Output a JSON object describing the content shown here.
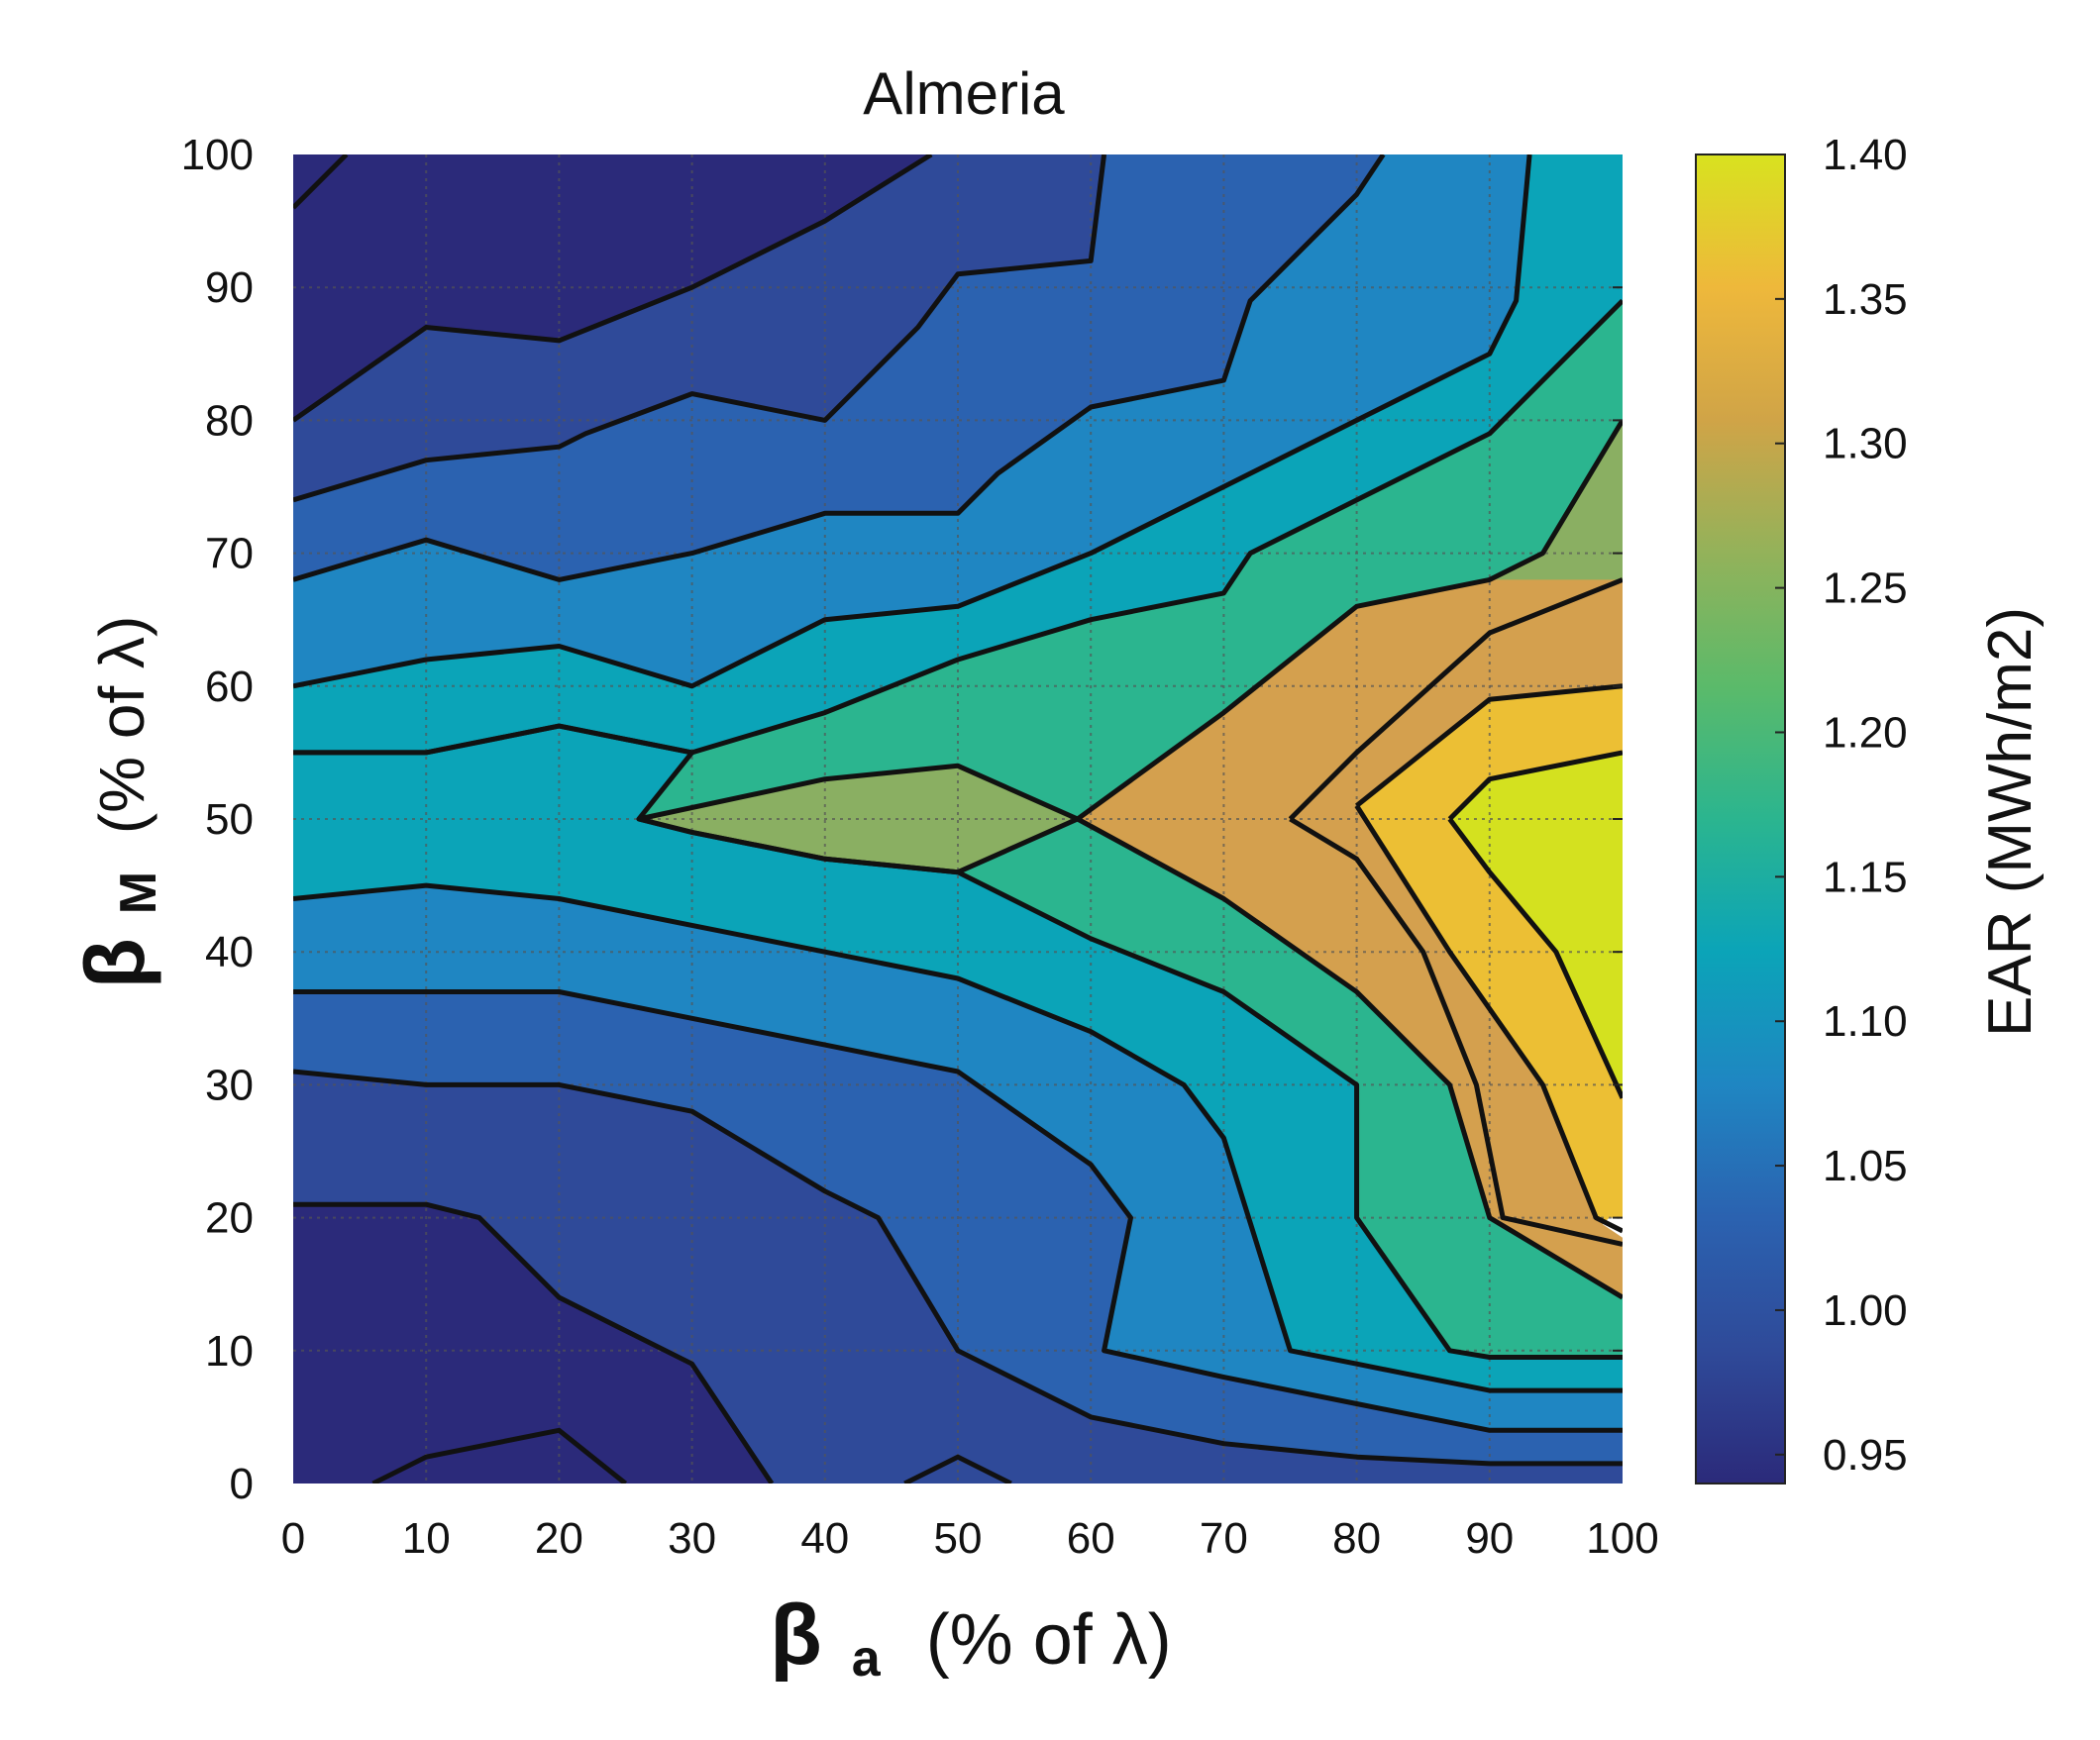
{
  "chart_data": {
    "type": "contour",
    "title": "Almeria",
    "xlabel": {
      "symbol": "β",
      "sub": "a",
      "text": "(% of λ)"
    },
    "ylabel": {
      "symbol": "β",
      "sub": "M",
      "text": "(% of λ)"
    },
    "xlim": [
      0,
      100
    ],
    "ylim": [
      0,
      100
    ],
    "xticks": [
      "0",
      "10",
      "20",
      "30",
      "40",
      "50",
      "60",
      "70",
      "80",
      "90",
      "100"
    ],
    "yticks": [
      "0",
      "10",
      "20",
      "30",
      "40",
      "50",
      "60",
      "70",
      "80",
      "90",
      "100"
    ],
    "grid": true,
    "colorbar": {
      "label": "EAR (MWh/m2)",
      "range": [
        0.94,
        1.4
      ],
      "ticks": [
        "0.95",
        "1.00",
        "1.05",
        "1.10",
        "1.15",
        "1.20",
        "1.25",
        "1.30",
        "1.35",
        "1.40"
      ],
      "colormap": [
        "#2b2a7a",
        "#2f4a99",
        "#2b62b0",
        "#1f86c2",
        "#0ba4b8",
        "#2bb58f",
        "#5bba6a",
        "#93b25a",
        "#d0a447",
        "#eeb83b",
        "#d8e21f"
      ]
    },
    "level_colors": {
      "0.95": "#2b2a7a",
      "1.00": "#2f4a99",
      "1.05": "#2b62b0",
      "1.10": "#1f86c2",
      "1.15": "#0ba4b8",
      "1.20": "#2bb58f",
      "1.25": "#8aaf62",
      "1.30": "#d4a04e",
      "1.35": "#ecbf34",
      "1.40": "#d4e11f"
    },
    "contours": [
      {
        "level": 0.95,
        "points": [
          [
            0,
            96
          ],
          [
            4,
            100
          ]
        ]
      },
      {
        "level": 0.95,
        "points": [
          [
            6,
            0
          ],
          [
            10,
            2
          ],
          [
            20,
            4
          ],
          [
            25,
            0
          ]
        ]
      },
      {
        "level": 0.95,
        "points": [
          [
            46,
            0
          ],
          [
            50,
            2
          ],
          [
            54,
            0
          ]
        ]
      },
      {
        "level": 1.0,
        "points": [
          [
            0,
            80
          ],
          [
            10,
            87
          ],
          [
            20,
            86
          ],
          [
            30,
            90
          ],
          [
            40,
            95
          ],
          [
            48,
            100
          ]
        ]
      },
      {
        "level": 1.0,
        "points": [
          [
            0,
            21
          ],
          [
            10,
            21
          ],
          [
            14,
            20
          ],
          [
            20,
            14
          ],
          [
            30,
            9
          ],
          [
            36,
            0
          ]
        ]
      },
      {
        "level": 1.05,
        "points": [
          [
            0,
            74
          ],
          [
            10,
            77
          ],
          [
            20,
            78
          ],
          [
            22,
            79
          ],
          [
            30,
            82
          ],
          [
            40,
            80
          ],
          [
            47,
            87
          ],
          [
            50,
            91
          ],
          [
            60,
            92
          ],
          [
            61,
            100
          ]
        ]
      },
      {
        "level": 1.05,
        "points": [
          [
            0,
            31
          ],
          [
            10,
            30
          ],
          [
            20,
            30
          ],
          [
            30,
            28
          ],
          [
            40,
            22
          ],
          [
            44,
            20
          ],
          [
            50,
            10
          ],
          [
            60,
            5
          ],
          [
            70,
            3
          ],
          [
            80,
            2
          ],
          [
            90,
            1.5
          ],
          [
            100,
            1.5
          ]
        ]
      },
      {
        "level": 1.1,
        "points": [
          [
            0,
            68
          ],
          [
            10,
            71
          ],
          [
            20,
            68
          ],
          [
            30,
            70
          ],
          [
            40,
            73
          ],
          [
            50,
            73
          ],
          [
            53,
            76
          ],
          [
            60,
            81
          ],
          [
            70,
            83
          ],
          [
            72,
            89
          ],
          [
            80,
            97
          ],
          [
            82,
            100
          ]
        ]
      },
      {
        "level": 1.1,
        "points": [
          [
            0,
            37
          ],
          [
            10,
            37
          ],
          [
            20,
            37
          ],
          [
            30,
            35
          ],
          [
            40,
            33
          ],
          [
            50,
            31
          ],
          [
            60,
            24
          ],
          [
            63,
            20
          ],
          [
            61,
            10
          ],
          [
            70,
            8
          ],
          [
            80,
            6
          ],
          [
            90,
            4
          ],
          [
            100,
            4
          ]
        ]
      },
      {
        "level": 1.15,
        "points": [
          [
            0,
            60
          ],
          [
            10,
            62
          ],
          [
            20,
            63
          ],
          [
            30,
            60
          ],
          [
            40,
            65
          ],
          [
            50,
            66
          ],
          [
            60,
            70
          ],
          [
            70,
            75
          ],
          [
            80,
            80
          ],
          [
            90,
            85
          ],
          [
            92,
            89
          ],
          [
            93,
            100
          ]
        ]
      },
      {
        "level": 1.15,
        "points": [
          [
            0,
            44
          ],
          [
            10,
            45
          ],
          [
            20,
            44
          ],
          [
            30,
            42
          ],
          [
            40,
            40
          ],
          [
            50,
            38
          ],
          [
            60,
            34
          ],
          [
            67,
            30
          ],
          [
            70,
            26
          ],
          [
            75,
            10
          ],
          [
            80,
            9
          ],
          [
            90,
            7
          ],
          [
            100,
            7
          ]
        ]
      },
      {
        "level": 1.2,
        "points": [
          [
            0,
            55
          ],
          [
            10,
            55
          ],
          [
            20,
            57
          ],
          [
            30,
            55
          ],
          [
            40,
            58
          ],
          [
            50,
            62
          ],
          [
            60,
            65
          ],
          [
            70,
            67
          ],
          [
            72,
            70
          ],
          [
            80,
            74
          ],
          [
            90,
            79
          ],
          [
            100,
            89
          ]
        ]
      },
      {
        "level": 1.2,
        "points": [
          [
            0,
            55
          ],
          [
            10,
            55
          ],
          [
            20,
            57
          ],
          [
            30,
            55
          ],
          [
            26,
            50
          ],
          [
            30,
            49
          ],
          [
            40,
            47
          ],
          [
            50,
            46
          ],
          [
            60,
            41
          ],
          [
            70,
            37
          ],
          [
            80,
            30
          ],
          [
            80,
            20
          ],
          [
            87,
            10
          ],
          [
            90,
            9.5
          ],
          [
            100,
            9.5
          ]
        ]
      },
      {
        "level": 1.25,
        "points": [
          [
            26,
            50
          ],
          [
            40,
            53
          ],
          [
            50,
            54
          ],
          [
            59,
            50
          ],
          [
            50,
            46
          ],
          [
            40,
            47
          ],
          [
            30,
            49
          ],
          [
            26,
            50
          ]
        ]
      },
      {
        "level": 1.25,
        "points": [
          [
            59,
            50
          ],
          [
            70,
            58
          ],
          [
            80,
            66
          ],
          [
            90,
            68
          ],
          [
            94,
            70
          ],
          [
            100,
            80
          ]
        ]
      },
      {
        "level": 1.25,
        "points": [
          [
            59,
            50
          ],
          [
            70,
            44
          ],
          [
            80,
            37
          ],
          [
            87,
            30
          ],
          [
            90,
            20
          ],
          [
            100,
            14
          ]
        ]
      },
      {
        "level": 1.3,
        "points": [
          [
            75,
            50
          ],
          [
            80,
            55
          ],
          [
            90,
            64
          ],
          [
            100,
            68
          ]
        ]
      },
      {
        "level": 1.3,
        "points": [
          [
            75,
            50
          ],
          [
            80,
            47
          ],
          [
            85,
            40
          ],
          [
            89,
            30
          ],
          [
            91,
            20
          ],
          [
            100,
            18
          ]
        ]
      },
      {
        "level": 1.35,
        "points": [
          [
            80,
            51
          ],
          [
            90,
            59
          ],
          [
            100,
            60
          ]
        ]
      },
      {
        "level": 1.35,
        "points": [
          [
            80,
            51
          ],
          [
            87,
            40
          ],
          [
            94,
            30
          ],
          [
            98,
            20
          ],
          [
            100,
            19
          ]
        ]
      },
      {
        "level": 1.4,
        "points": [
          [
            87,
            50
          ],
          [
            90,
            53
          ],
          [
            100,
            55
          ]
        ]
      },
      {
        "level": 1.4,
        "points": [
          [
            87,
            50
          ],
          [
            90,
            46
          ],
          [
            95,
            40
          ],
          [
            100,
            29
          ]
        ]
      }
    ]
  }
}
